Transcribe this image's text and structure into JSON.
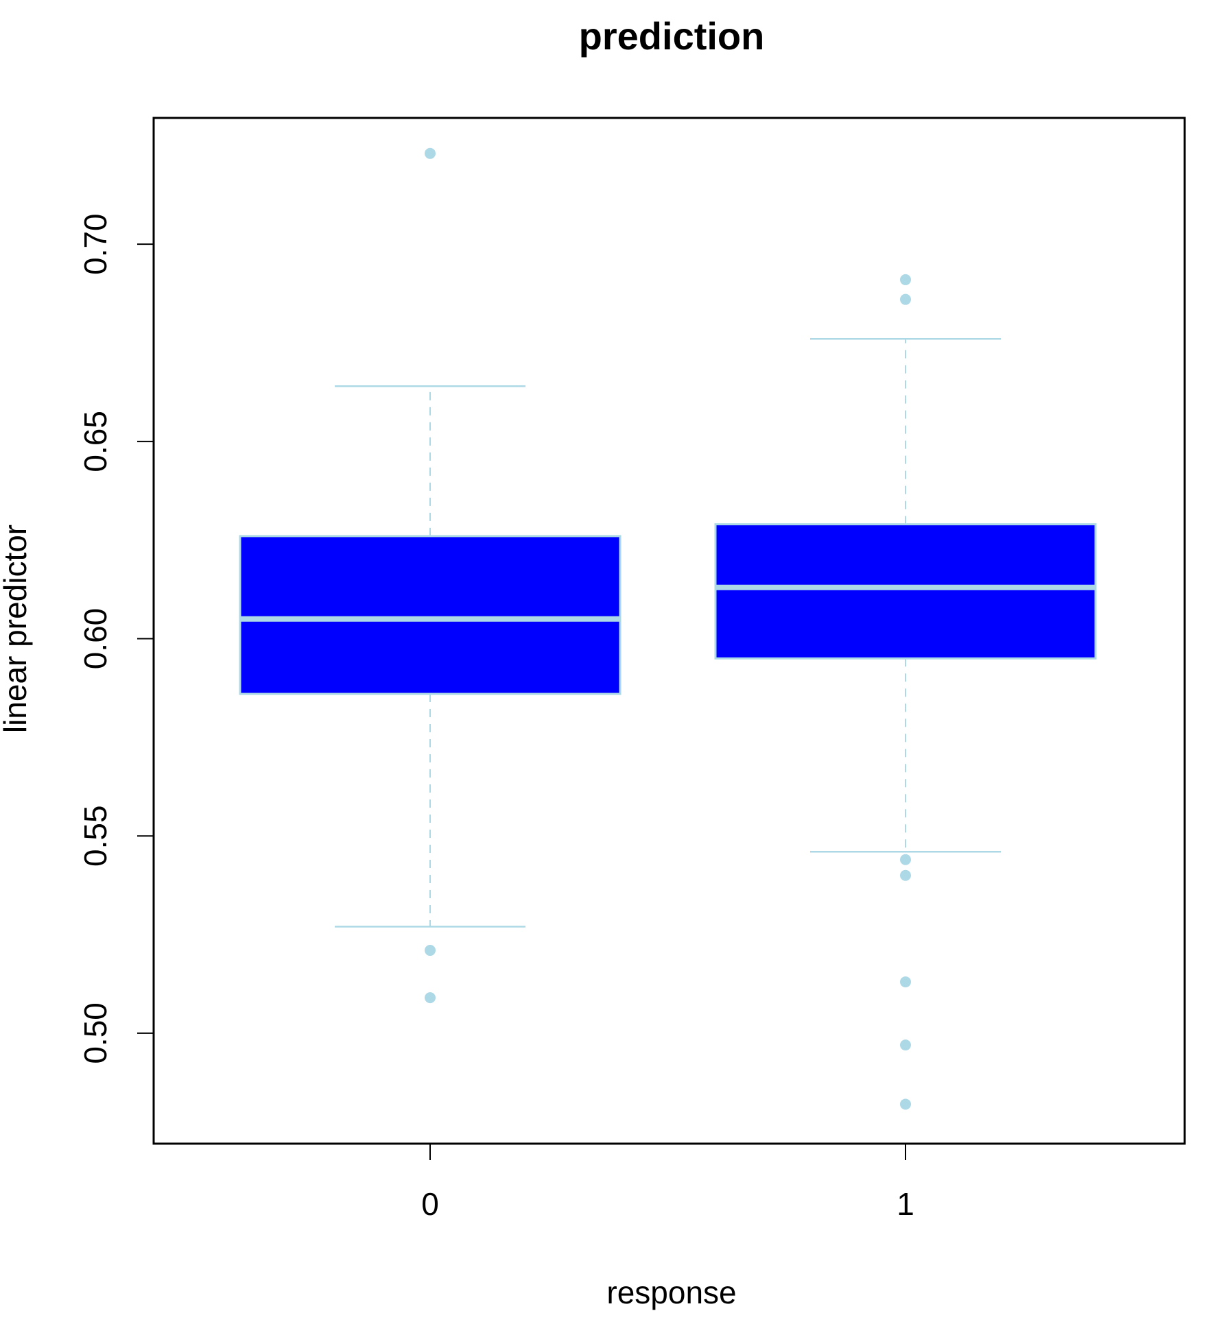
{
  "chart_data": {
    "type": "boxplot",
    "title": "prediction",
    "xlabel": "response",
    "ylabel": "linear predictor",
    "ylim": [
      0.472,
      0.732
    ],
    "yticks": [
      0.5,
      0.55,
      0.6,
      0.65,
      0.7
    ],
    "ytick_labels": [
      "0.50",
      "0.55",
      "0.60",
      "0.65",
      "0.70"
    ],
    "grid": false,
    "colors": {
      "box_fill": "#0000ff",
      "accent": "#add8e6",
      "frame": "#000000"
    },
    "groups": [
      {
        "category": "0",
        "whisker_low": 0.527,
        "q1": 0.586,
        "median": 0.605,
        "q3": 0.626,
        "whisker_high": 0.664,
        "outliers": [
          0.723,
          0.521,
          0.509
        ]
      },
      {
        "category": "1",
        "whisker_low": 0.546,
        "q1": 0.595,
        "median": 0.613,
        "q3": 0.629,
        "whisker_high": 0.676,
        "outliers": [
          0.691,
          0.686,
          0.544,
          0.54,
          0.513,
          0.497,
          0.482
        ]
      }
    ]
  }
}
